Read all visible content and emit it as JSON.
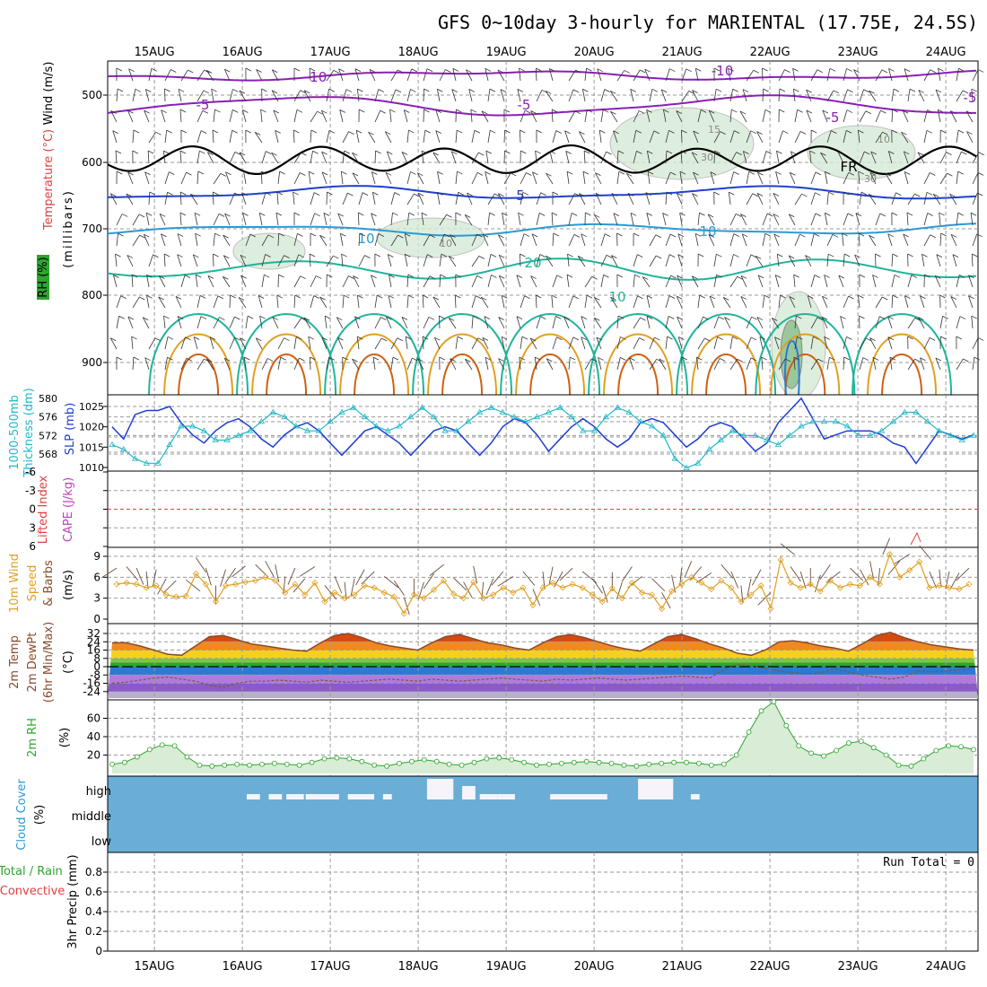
{
  "title": "GFS 0~10day 3-hourly for MARIENTAL (17.75E, 24.5S)",
  "dates": [
    "15AUG",
    "16AUG",
    "17AUG",
    "18AUG",
    "19AUG",
    "20AUG",
    "21AUG",
    "22AUG",
    "23AUG",
    "24AUG"
  ],
  "colors": {
    "grid": "#9a9a9a",
    "purple": "#8a1fb5",
    "darkblue": "#1f3fcf",
    "lightblue": "#2a9ad6",
    "teal": "#1fb59a",
    "orange": "#e0a020",
    "darkorange": "#d06010",
    "cyan": "#20b8c8",
    "cloud": "#6aaed6",
    "rh": "#2ea52e",
    "tempLine": "#8a4a2a"
  },
  "panels": {
    "upper_air": {
      "axis_labels": [
        "Wind (m/s)",
        "Temperature (°C)",
        "RH (%)",
        "(millibars)"
      ],
      "pressure_ticks": [
        "500",
        "600",
        "700",
        "800",
        "900"
      ],
      "contour_labels": [
        "-10",
        "-10",
        "-5",
        "-5",
        "-5",
        "-5",
        "FR",
        "5",
        "10",
        "10",
        "10",
        "15",
        "20",
        "10",
        "10",
        "30",
        "30"
      ]
    },
    "slp_thickness": {
      "left_label_1": "1000-500mb",
      "left_label_2": "Thickness (dm)",
      "right_label": "SLP (mb)",
      "left_ticks": [
        "580",
        "576",
        "572",
        "568"
      ],
      "right_ticks": [
        "1025",
        "1020",
        "1015",
        "1010"
      ]
    },
    "lifted_index": {
      "label_1": "Lifted Index",
      "label_2": "CAPE (J/kg)",
      "ticks": [
        "-6",
        "-3",
        "0",
        "3",
        "6"
      ]
    },
    "wind10m": {
      "label_1": "10m Wind",
      "label_2": "Speed",
      "label_3": "& Barbs",
      "label_4": "(m/s)",
      "ticks": [
        "9",
        "6",
        "3",
        "0"
      ]
    },
    "temp2m": {
      "label_1": "2m Temp",
      "label_2": "2m DewPt",
      "label_3": "(6hr Min/Max)",
      "label_4": "(°C)",
      "ticks": [
        "32",
        "24",
        "16",
        "8",
        "0",
        "-8",
        "-16",
        "-24"
      ]
    },
    "rh2m": {
      "label_1": "2m RH",
      "label_2": "(%)",
      "ticks": [
        "60",
        "40",
        "20"
      ]
    },
    "cloud": {
      "label_1": "Cloud Cover",
      "label_2": "(%)",
      "levels": [
        "high",
        "middle",
        "low"
      ]
    },
    "precip": {
      "label_1": "Total / Rain",
      "label_2": "Convective",
      "label_3": "3hr Precip (mm)",
      "ticks": [
        "0.8",
        "0.6",
        "0.4",
        "0.2",
        "0"
      ],
      "run_total": "Run Total = 0"
    }
  },
  "chart_data": [
    {
      "type": "line",
      "title": "1000-500mb Thickness (dm) / SLP (mb)",
      "x_unit": "3-hourly steps from 15AUG 00Z",
      "series": [
        {
          "name": "SLP (mb)",
          "ylim": [
            1008,
            1029
          ],
          "values": [
            1020,
            1017,
            1023,
            1024,
            1024,
            1025,
            1021,
            1018,
            1016,
            1019,
            1021,
            1022,
            1020,
            1017,
            1015,
            1018,
            1020,
            1021,
            1019,
            1016,
            1013,
            1016,
            1019,
            1020,
            1018,
            1016,
            1013,
            1016,
            1019,
            1020,
            1019,
            1016,
            1013,
            1016,
            1020,
            1022,
            1021,
            1018,
            1014,
            1017,
            1020,
            1022,
            1020,
            1017,
            1015,
            1017,
            1021,
            1022,
            1021,
            1018,
            1015,
            1017,
            1020,
            1021,
            1020,
            1017,
            1014,
            1016,
            1021,
            1024,
            1027,
            1022,
            1017,
            1018,
            1019,
            1019,
            1019,
            1018,
            1016,
            1015,
            1011,
            1015,
            1019,
            1018,
            1017,
            1018
          ]
        },
        {
          "name": "1000-500mb Thickness (dm)",
          "ylim": [
            564,
            581
          ],
          "values": [
            570,
            569,
            567,
            566,
            566,
            570,
            574,
            574,
            573,
            571,
            571,
            572,
            573,
            575,
            577,
            576,
            574,
            573,
            573,
            575,
            577,
            578,
            576,
            574,
            573,
            574,
            576,
            578,
            576,
            573,
            573,
            575,
            577,
            578,
            577,
            576,
            575,
            576,
            577,
            578,
            576,
            573,
            573,
            576,
            578,
            577,
            575,
            574,
            572,
            567,
            565,
            566,
            569,
            571,
            573,
            572,
            572,
            571,
            570,
            572,
            574,
            575,
            575,
            575,
            574,
            572,
            572,
            573,
            575,
            577,
            577,
            575,
            573,
            572,
            571,
            572
          ]
        }
      ]
    },
    {
      "type": "line",
      "title": "10m Wind Speed (m/s)",
      "ylim": [
        0,
        10
      ],
      "values": [
        5,
        5.2,
        5,
        4.5,
        4.8,
        3.5,
        3.2,
        3.3,
        6.5,
        5,
        2.5,
        4.8,
        5,
        5.3,
        5.5,
        6,
        5.5,
        3.8,
        5,
        3.5,
        5.2,
        2.5,
        3.8,
        3,
        3.5,
        4.8,
        4.5,
        3.8,
        3.2,
        0.8,
        3.5,
        3,
        4.2,
        5.5,
        3.6,
        3,
        5.3,
        3,
        3.5,
        4.5,
        3.8,
        4.5,
        2,
        4.5,
        5.2,
        4.5,
        5,
        4.5,
        3.5,
        2.5,
        4.4,
        3,
        5.2,
        3.8,
        3.5,
        1.5,
        4,
        5,
        6,
        5.2,
        4.3,
        5.5,
        4.5,
        2.5,
        3.5,
        4.8,
        1.5,
        8.5,
        5.2,
        4.5,
        5,
        4,
        5.5,
        4.5,
        5,
        4.8,
        6,
        5,
        9.3,
        6,
        7,
        8.2,
        4.5,
        4.8,
        4.5,
        4.3,
        5
      ]
    },
    {
      "type": "area",
      "title": "2m Temp / 2m DewPt (°C)",
      "ylim": [
        -24,
        36
      ],
      "series": [
        {
          "name": "2m Temp",
          "values": [
            23,
            23,
            20,
            16,
            12,
            11,
            20,
            29,
            30,
            26,
            22,
            20,
            18,
            16,
            15,
            23,
            30,
            32,
            28,
            23,
            20,
            18,
            16,
            23,
            29,
            31,
            27,
            23,
            21,
            18,
            16,
            23,
            29,
            31,
            28,
            24,
            20,
            17,
            15,
            22,
            29,
            31,
            27,
            22,
            18,
            13,
            11,
            16,
            24,
            25,
            23,
            20,
            18,
            15,
            22,
            30,
            33,
            28,
            24,
            21,
            19,
            17,
            16
          ]
        },
        {
          "name": "2m DewPt",
          "values": [
            -16,
            -15,
            -13,
            -11,
            -10,
            -12,
            -14,
            -18,
            -20,
            -16,
            -14,
            -14,
            -13,
            -14,
            -15,
            -13,
            -14,
            -15,
            -14,
            -13,
            -12,
            -13,
            -14,
            -12,
            -13,
            -14,
            -13,
            -12,
            -11,
            -12,
            -13,
            -14,
            -12,
            -13,
            -12,
            -11,
            -12,
            -13,
            -12,
            -11,
            -10,
            -9,
            -10,
            -11,
            -3,
            2,
            1,
            -2,
            -4,
            -6,
            -7,
            -6,
            -2,
            -5,
            -8,
            -10,
            -12,
            -10,
            -4,
            -5,
            -4,
            -3,
            -2
          ]
        }
      ]
    },
    {
      "type": "area",
      "title": "2m RH (%)",
      "ylim": [
        0,
        80
      ],
      "values": [
        10,
        12,
        18,
        26,
        31,
        30,
        18,
        9,
        8,
        9,
        10,
        9,
        10,
        11,
        10,
        9,
        12,
        16,
        17,
        16,
        13,
        9,
        8,
        11,
        13,
        15,
        13,
        10,
        9,
        12,
        16,
        17,
        15,
        12,
        9,
        10,
        11,
        12,
        13,
        12,
        11,
        9,
        8,
        10,
        11,
        12,
        12,
        11,
        9,
        10,
        20,
        45,
        68,
        78,
        52,
        30,
        22,
        19,
        25,
        33,
        35,
        28,
        20,
        9,
        8,
        16,
        25,
        30,
        29,
        26
      ]
    },
    {
      "type": "table",
      "title": "Cloud Cover (%) high level presence",
      "rows": [
        "high",
        "middle",
        "low"
      ],
      "high_segments_day_units": [
        [
          1.05,
          1.2
        ],
        [
          1.3,
          1.45
        ],
        [
          1.5,
          1.7
        ],
        [
          1.72,
          2.1
        ],
        [
          2.2,
          2.5
        ],
        [
          2.6,
          2.7
        ],
        [
          3.2,
          3.3
        ],
        [
          3.5,
          3.6
        ],
        [
          3.7,
          3.9
        ],
        [
          3.9,
          4.1
        ],
        [
          4.5,
          5.15
        ],
        [
          6.1,
          6.2
        ]
      ]
    },
    {
      "type": "bar",
      "title": "3hr Precip (mm)",
      "ylim": [
        0,
        1
      ],
      "values": [
        0
      ],
      "note": "Run Total = 0"
    }
  ]
}
